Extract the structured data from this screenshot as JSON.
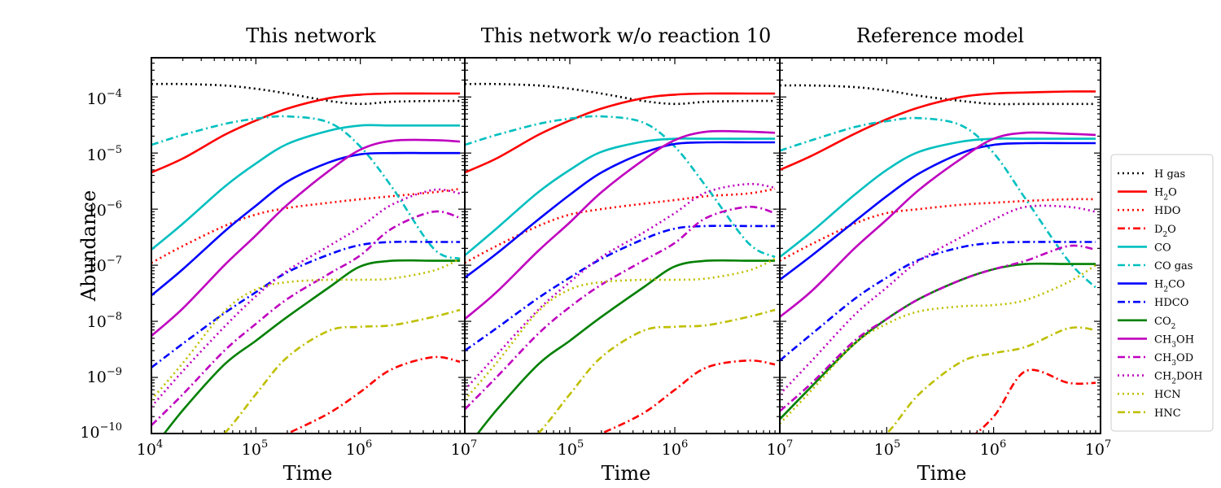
{
  "chart_data": {
    "type": "line",
    "ylabel": "Abundance",
    "yscale": "log",
    "xscale": "log",
    "ylim": [
      1e-10,
      0.0005
    ],
    "xlim": [
      10000.0,
      10000000.0
    ],
    "ytick_labels": [
      {
        "base": "10",
        "exp": "−10",
        "value": 1e-10
      },
      {
        "base": "10",
        "exp": "−9",
        "value": 1e-09
      },
      {
        "base": "10",
        "exp": "−8",
        "value": 1e-08
      },
      {
        "base": "10",
        "exp": "−7",
        "value": 1e-07
      },
      {
        "base": "10",
        "exp": "−6",
        "value": 1e-06
      },
      {
        "base": "10",
        "exp": "−5",
        "value": 1e-05
      },
      {
        "base": "10",
        "exp": "−4",
        "value": 0.0001
      }
    ],
    "xtick_labels": [
      {
        "base": "10",
        "exp": "4",
        "value": 10000.0
      },
      {
        "base": "10",
        "exp": "5",
        "value": 100000.0
      },
      {
        "base": "10",
        "exp": "6",
        "value": 1000000.0
      },
      {
        "base": "10",
        "exp": "7",
        "value": 10000000.0
      }
    ],
    "x": [
      10000,
      20000,
      50000,
      100000,
      200000,
      500000,
      1000000,
      2000000,
      5000000,
      9000000
    ],
    "species": [
      {
        "key": "h_gas",
        "label": "H gas",
        "color": "#000000",
        "dash": "dotted"
      },
      {
        "key": "h2o",
        "label": "H2O",
        "color": "#ff0000",
        "dash": "solid"
      },
      {
        "key": "hdo",
        "label": "HDO",
        "color": "#ff0000",
        "dash": "dotted"
      },
      {
        "key": "d2o",
        "label": "D2O",
        "color": "#ff0000",
        "dash": "dashdot"
      },
      {
        "key": "co",
        "label": "CO",
        "color": "#00bfbf",
        "dash": "solid"
      },
      {
        "key": "co_gas",
        "label": "CO gas",
        "color": "#00bfbf",
        "dash": "dashdot"
      },
      {
        "key": "h2co",
        "label": "H2CO",
        "color": "#0000ff",
        "dash": "solid"
      },
      {
        "key": "hdco",
        "label": "HDCO",
        "color": "#0000ff",
        "dash": "dashdot"
      },
      {
        "key": "co2",
        "label": "CO2",
        "color": "#008000",
        "dash": "solid"
      },
      {
        "key": "ch3oh",
        "label": "CH3OH",
        "color": "#bf00bf",
        "dash": "solid"
      },
      {
        "key": "ch3od",
        "label": "CH3OD",
        "color": "#bf00bf",
        "dash": "dashdot"
      },
      {
        "key": "ch2doh",
        "label": "CH2DOH",
        "color": "#bf00bf",
        "dash": "dotted"
      },
      {
        "key": "hcn",
        "label": "HCN",
        "color": "#bfbf00",
        "dash": "dotted"
      },
      {
        "key": "hnc",
        "label": "HNC",
        "color": "#bfbf00",
        "dash": "dashdot"
      }
    ],
    "panels": [
      {
        "title": "This network",
        "xlabel": "Time",
        "series": {
          "h_gas": [
            0.00017,
            0.00017,
            0.00016,
            0.00014,
            0.000115,
            8.5e-05,
            7.5e-05,
            8.2e-05,
            8.5e-05,
            8.5e-05
          ],
          "h2o": [
            4.5e-06,
            8e-06,
            2.1e-05,
            3.8e-05,
            6.2e-05,
            9.5e-05,
            0.00011,
            0.000115,
            0.000115,
            0.000115
          ],
          "hdo": [
            1.1e-07,
            2.2e-07,
            5e-07,
            8e-07,
            1.05e-06,
            1.3e-06,
            1.5e-06,
            1.7e-06,
            2e-06,
            2.3e-06
          ],
          "d2o": [
            1e-11,
            1e-11,
            3e-11,
            6e-11,
            1e-10,
            2.3e-10,
            5.5e-10,
            1.4e-09,
            2.3e-09,
            1.9e-09
          ],
          "co": [
            1.9e-07,
            5.5e-07,
            2.5e-06,
            6.5e-06,
            1.45e-05,
            2.5e-05,
            3.1e-05,
            3.1e-05,
            3.1e-05,
            3.1e-05
          ],
          "co_gas": [
            1.4e-05,
            2.1e-05,
            3.3e-05,
            4.1e-05,
            4.5e-05,
            3.5e-05,
            1.3e-05,
            2.5e-06,
            2e-07,
            1.3e-07
          ],
          "h2co": [
            2.9e-08,
            8.5e-08,
            4e-07,
            1.15e-06,
            3.1e-06,
            6.8e-06,
            9.5e-06,
            1e-05,
            1e-05,
            1e-05
          ],
          "hdco": [
            1.5e-09,
            4e-09,
            1.4e-08,
            3.3e-08,
            7.5e-08,
            1.55e-07,
            2.3e-07,
            2.6e-07,
            2.6e-07,
            2.6e-07
          ],
          "co2": [
            5e-11,
            2.6e-10,
            1.7e-09,
            4.5e-09,
            1.2e-08,
            4e-08,
            9.5e-08,
            1.2e-07,
            1.2e-07,
            1.2e-07
          ],
          "ch3oh": [
            5.5e-09,
            1.7e-08,
            1e-07,
            3.4e-07,
            1.2e-06,
            4.8e-06,
            1.15e-05,
            1.65e-05,
            1.7e-05,
            1.6e-05
          ],
          "ch3od": [
            1.4e-10,
            5e-10,
            3e-09,
            9e-09,
            2.5e-08,
            7e-08,
            1.5e-07,
            4.5e-07,
            9e-07,
            7e-07
          ],
          "ch2doh": [
            3e-10,
            1.3e-09,
            8e-09,
            2.8e-08,
            8e-08,
            2.2e-07,
            4.8e-07,
            1.2e-06,
            2.2e-06,
            1.9e-06
          ],
          "hcn": [
            4e-10,
            1.8e-09,
            1.5e-08,
            3.7e-08,
            5e-08,
            5.5e-08,
            5.5e-08,
            5.8e-08,
            8e-08,
            1.3e-07
          ],
          "hnc": [
            1e-11,
            2e-11,
            1e-10,
            5e-10,
            2.3e-09,
            6.8e-09,
            8e-09,
            8.5e-09,
            1.2e-08,
            1.6e-08
          ]
        }
      },
      {
        "title": "This network w/o reaction 10",
        "xlabel": "Time",
        "series": {
          "h_gas": [
            0.00017,
            0.00017,
            0.00016,
            0.00014,
            0.000115,
            8.5e-05,
            7.5e-05,
            8.2e-05,
            8.5e-05,
            8.5e-05
          ],
          "h2o": [
            4.5e-06,
            8e-06,
            2.1e-05,
            3.8e-05,
            6.2e-05,
            9.5e-05,
            0.00011,
            0.000115,
            0.000115,
            0.000115
          ],
          "hdo": [
            1.1e-07,
            2.2e-07,
            5e-07,
            8e-07,
            1e-06,
            1.25e-06,
            1.45e-06,
            1.7e-06,
            1.9e-06,
            2.3e-06
          ],
          "d2o": [
            1e-11,
            1e-11,
            3e-11,
            6e-11,
            1e-10,
            2.3e-10,
            6e-10,
            1.5e-09,
            2e-09,
            1.7e-09
          ],
          "co": [
            1.5e-07,
            4.5e-07,
            2e-06,
            5e-06,
            1.05e-05,
            1.6e-05,
            1.8e-05,
            1.8e-05,
            1.8e-05,
            1.8e-05
          ],
          "co_gas": [
            1.4e-05,
            2.1e-05,
            3.3e-05,
            4.1e-05,
            4.5e-05,
            3.5e-05,
            1.3e-05,
            2.5e-06,
            2.5e-07,
            1.4e-07
          ],
          "h2co": [
            6e-08,
            1.6e-07,
            6.5e-07,
            1.8e-06,
            4.5e-06,
            1e-05,
            1.45e-05,
            1.55e-05,
            1.55e-05,
            1.55e-05
          ],
          "hdco": [
            3e-09,
            7.5e-09,
            2.6e-08,
            6e-08,
            1.3e-07,
            2.9e-07,
            4.5e-07,
            5e-07,
            5e-07,
            5e-07
          ],
          "co2": [
            5e-11,
            2.6e-10,
            1.7e-09,
            4.5e-09,
            1.2e-08,
            4e-08,
            9.5e-08,
            1.2e-07,
            1.2e-07,
            1.2e-07
          ],
          "ch3oh": [
            1.1e-08,
            3.3e-08,
            1.8e-07,
            5.8e-07,
            2e-06,
            7.5e-06,
            1.7e-05,
            2.4e-05,
            2.4e-05,
            2.3e-05
          ],
          "ch3od": [
            2.7e-10,
            1e-09,
            6e-09,
            1.8e-08,
            4.5e-08,
            1.2e-07,
            2.5e-07,
            7e-07,
            1.1e-06,
            8.5e-07
          ],
          "ch2doh": [
            6e-10,
            2.5e-09,
            1.6e-08,
            5e-08,
            1.4e-07,
            3.8e-07,
            8.5e-07,
            2e-06,
            2.8e-06,
            2.4e-06
          ],
          "hcn": [
            4e-10,
            1.8e-09,
            1.5e-08,
            3.7e-08,
            5e-08,
            5.5e-08,
            5.5e-08,
            5.8e-08,
            8e-08,
            1.3e-07
          ],
          "hnc": [
            1e-11,
            2e-11,
            1e-10,
            5e-10,
            2.3e-09,
            6.8e-09,
            8e-09,
            8.5e-09,
            1.2e-08,
            1.6e-08
          ]
        }
      },
      {
        "title": "Reference model",
        "xlabel": "Time",
        "series": {
          "h_gas": [
            0.00016,
            0.00016,
            0.00015,
            0.00013,
            0.000105,
            8.5e-05,
            7.5e-05,
            7.5e-05,
            7.5e-05,
            7.5e-05
          ],
          "h2o": [
            5e-06,
            9e-06,
            2.2e-05,
            4e-05,
            6.5e-05,
            0.0001,
            0.000115,
            0.00012,
            0.000125,
            0.000125
          ],
          "hdo": [
            1.2e-07,
            2.4e-07,
            5.5e-07,
            8.5e-07,
            1e-06,
            1.2e-06,
            1.3e-06,
            1.4e-06,
            1.5e-06,
            1.5e-06
          ],
          "d2o": [
            1e-11,
            1e-11,
            2e-11,
            3e-11,
            5e-11,
            7e-11,
            2e-10,
            1.3e-09,
            8e-10,
            8e-10
          ],
          "co": [
            1.4e-07,
            4e-07,
            1.8e-06,
            5e-06,
            1.05e-05,
            1.6e-05,
            1.8e-05,
            1.8e-05,
            1.8e-05,
            1.8e-05
          ],
          "co_gas": [
            1.1e-05,
            1.7e-05,
            2.9e-05,
            3.7e-05,
            4.2e-05,
            3.1e-05,
            1e-05,
            1.5e-06,
            1.2e-07,
            4e-08
          ],
          "h2co": [
            5.5e-08,
            1.5e-07,
            6e-07,
            1.7e-06,
            4.3e-06,
            1e-05,
            1.4e-05,
            1.5e-05,
            1.5e-05,
            1.5e-05
          ],
          "hdco": [
            2e-09,
            6e-09,
            2.5e-08,
            6e-08,
            1.25e-07,
            2.1e-07,
            2.5e-07,
            2.6e-07,
            2.6e-07,
            2.6e-07
          ],
          "co2": [
            1.8e-10,
            7e-10,
            4e-09,
            1.1e-08,
            2.5e-08,
            5.5e-08,
            8.5e-08,
            1.05e-07,
            1.05e-07,
            1.05e-07
          ],
          "ch3oh": [
            1.2e-08,
            3.5e-08,
            2e-07,
            6.5e-07,
            2.2e-06,
            8e-06,
            1.8e-05,
            2.3e-05,
            2.2e-05,
            2.1e-05
          ],
          "ch3od": [
            2.5e-10,
            8e-10,
            4.5e-09,
            1.1e-08,
            2.5e-08,
            5.5e-08,
            8.5e-08,
            1.2e-07,
            2.2e-07,
            1.9e-07
          ],
          "ch2doh": [
            5e-10,
            2e-09,
            1.3e-08,
            4e-08,
            1.2e-07,
            3.2e-07,
            6.5e-07,
            1.1e-06,
            1.1e-06,
            9e-07
          ],
          "hcn": [
            1.5e-10,
            6e-10,
            4e-09,
            9e-09,
            1.5e-08,
            1.85e-08,
            1.95e-08,
            2.4e-08,
            5e-08,
            1e-07
          ],
          "hnc": [
            1e-11,
            2e-11,
            4e-11,
            1e-10,
            5e-10,
            1.9e-09,
            2.7e-09,
            3.5e-09,
            7.5e-09,
            7e-09
          ]
        }
      }
    ]
  }
}
